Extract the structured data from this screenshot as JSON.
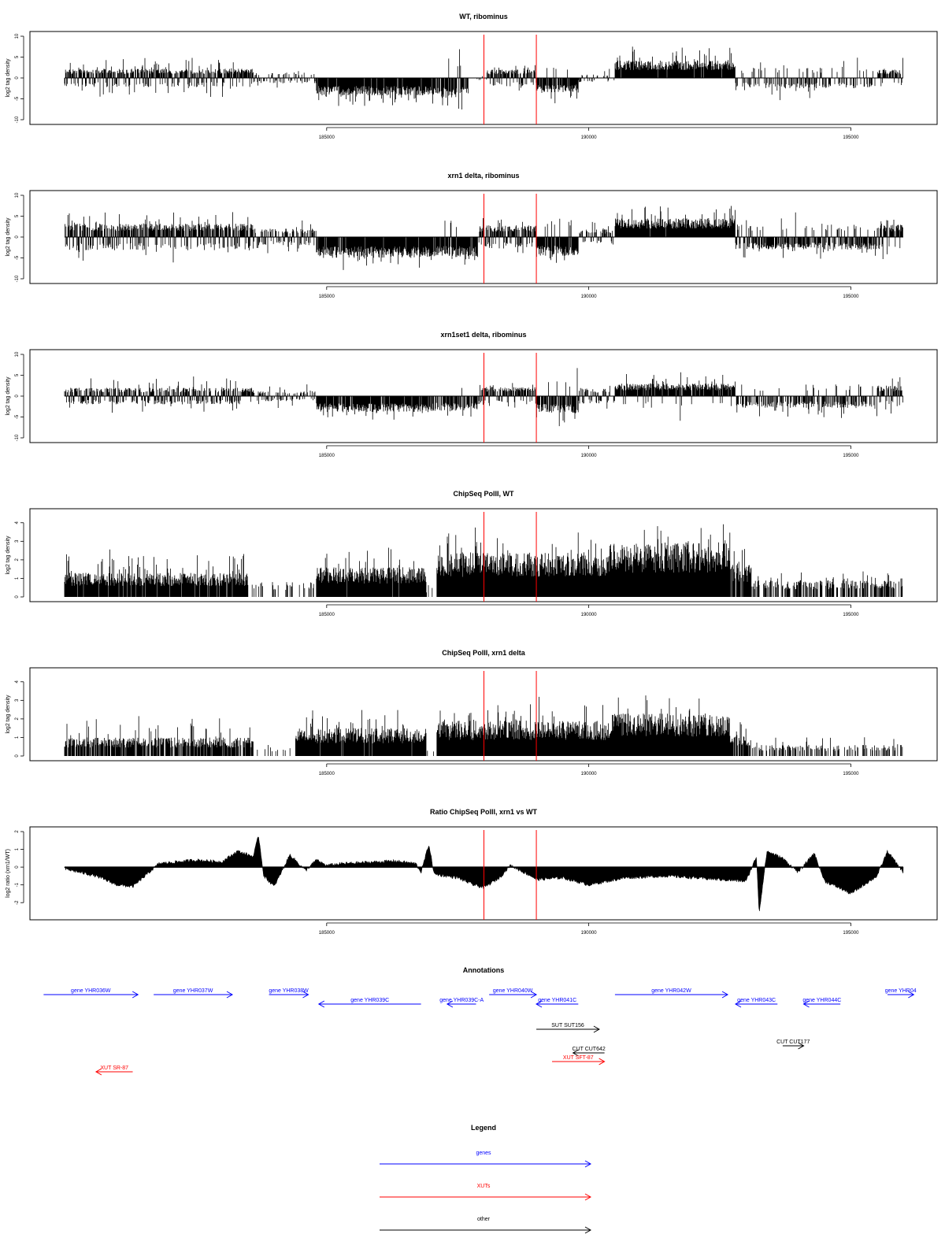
{
  "panels": [
    {
      "title": "WT, ribominus",
      "type": "bar",
      "ylabel": "log2 tag density",
      "ylim": [
        -10,
        10
      ],
      "yticks": [
        "-10",
        "-5",
        "0",
        "5",
        "10"
      ],
      "segments": [
        {
          "from": 180000,
          "to": 183600,
          "sign": 1,
          "mean": 2.2,
          "amp": 3.0,
          "pos_frac": 0.75,
          "density": 0.9
        },
        {
          "from": 183600,
          "to": 184800,
          "sign": 1,
          "mean": 1.3,
          "amp": 1.8,
          "pos_frac": 0.4,
          "density": 0.5
        },
        {
          "from": 184800,
          "to": 187000,
          "sign": -1,
          "mean": 4.2,
          "amp": 3.0,
          "pos_frac": 0.0,
          "density": 0.95
        },
        {
          "from": 187000,
          "to": 187700,
          "sign": -1,
          "mean": 4.8,
          "amp": 3.5,
          "pos_frac": 0.05,
          "density": 0.8
        },
        {
          "from": 187700,
          "to": 188050,
          "sign": 1,
          "mean": 0.5,
          "amp": 1.0,
          "pos_frac": 0.5,
          "density": 0.2
        },
        {
          "from": 188050,
          "to": 189000,
          "sign": 1,
          "mean": 2.0,
          "amp": 2.2,
          "pos_frac": 0.8,
          "density": 0.9
        },
        {
          "from": 189000,
          "to": 189800,
          "sign": -1,
          "mean": 3.5,
          "amp": 3.0,
          "pos_frac": 0.05,
          "density": 0.9
        },
        {
          "from": 189800,
          "to": 190500,
          "sign": 1,
          "mean": 1.0,
          "amp": 1.5,
          "pos_frac": 0.4,
          "density": 0.4
        },
        {
          "from": 190500,
          "to": 192800,
          "sign": 1,
          "mean": 4.2,
          "amp": 4.0,
          "pos_frac": 1.0,
          "density": 0.97
        },
        {
          "from": 192800,
          "to": 195500,
          "sign": -1,
          "mean": 2.5,
          "amp": 3.0,
          "pos_frac": 0.2,
          "density": 0.5
        },
        {
          "from": 195500,
          "to": 196000,
          "sign": 1,
          "mean": 2.0,
          "amp": 3.0,
          "pos_frac": 0.8,
          "density": 0.8
        }
      ]
    },
    {
      "title": "xrn1 delta, ribominus",
      "type": "bar",
      "ylabel": "log2 tag density",
      "ylim": [
        -10,
        10
      ],
      "yticks": [
        "-10",
        "-5",
        "0",
        "5",
        "10"
      ],
      "segments": [
        {
          "from": 180000,
          "to": 183600,
          "sign": 1,
          "mean": 3.2,
          "amp": 3.5,
          "pos_frac": 0.7,
          "density": 0.95
        },
        {
          "from": 183600,
          "to": 184800,
          "sign": 1,
          "mean": 2.0,
          "amp": 2.2,
          "pos_frac": 0.6,
          "density": 0.7
        },
        {
          "from": 184800,
          "to": 187000,
          "sign": -1,
          "mean": 5.0,
          "amp": 3.0,
          "pos_frac": 0.0,
          "density": 0.97
        },
        {
          "from": 187000,
          "to": 187900,
          "sign": -1,
          "mean": 4.8,
          "amp": 3.0,
          "pos_frac": 0.05,
          "density": 0.9
        },
        {
          "from": 187900,
          "to": 189000,
          "sign": 1,
          "mean": 2.8,
          "amp": 2.5,
          "pos_frac": 0.7,
          "density": 0.95
        },
        {
          "from": 189000,
          "to": 189800,
          "sign": -1,
          "mean": 4.5,
          "amp": 3.5,
          "pos_frac": 0.05,
          "density": 0.95
        },
        {
          "from": 189800,
          "to": 190500,
          "sign": 1,
          "mean": 1.8,
          "amp": 2.0,
          "pos_frac": 0.6,
          "density": 0.7
        },
        {
          "from": 190500,
          "to": 192800,
          "sign": 1,
          "mean": 4.5,
          "amp": 4.0,
          "pos_frac": 1.0,
          "density": 0.98
        },
        {
          "from": 192800,
          "to": 195500,
          "sign": -1,
          "mean": 3.0,
          "amp": 3.0,
          "pos_frac": 0.15,
          "density": 0.75
        },
        {
          "from": 195500,
          "to": 196000,
          "sign": 1,
          "mean": 3.0,
          "amp": 3.0,
          "pos_frac": 0.85,
          "density": 0.9
        }
      ]
    },
    {
      "title": "xrn1set1 delta, ribominus",
      "type": "bar",
      "ylabel": "log2 tag density",
      "ylim": [
        -10,
        10
      ],
      "yticks": [
        "-10",
        "-5",
        "0",
        "5",
        "10"
      ],
      "segments": [
        {
          "from": 180000,
          "to": 183600,
          "sign": 1,
          "mean": 2.0,
          "amp": 2.8,
          "pos_frac": 0.6,
          "density": 0.85
        },
        {
          "from": 183600,
          "to": 184800,
          "sign": 1,
          "mean": 1.2,
          "amp": 1.8,
          "pos_frac": 0.5,
          "density": 0.5
        },
        {
          "from": 184800,
          "to": 187000,
          "sign": -1,
          "mean": 3.8,
          "amp": 3.0,
          "pos_frac": 0.0,
          "density": 0.9
        },
        {
          "from": 187000,
          "to": 187900,
          "sign": -1,
          "mean": 3.5,
          "amp": 3.0,
          "pos_frac": 0.05,
          "density": 0.7
        },
        {
          "from": 187900,
          "to": 189000,
          "sign": 1,
          "mean": 2.2,
          "amp": 2.0,
          "pos_frac": 0.75,
          "density": 0.9
        },
        {
          "from": 189000,
          "to": 189800,
          "sign": -1,
          "mean": 4.0,
          "amp": 3.5,
          "pos_frac": 0.05,
          "density": 0.9
        },
        {
          "from": 189800,
          "to": 190500,
          "sign": 1,
          "mean": 1.8,
          "amp": 2.0,
          "pos_frac": 0.5,
          "density": 0.6
        },
        {
          "from": 190500,
          "to": 192800,
          "sign": 1,
          "mean": 3.0,
          "amp": 3.5,
          "pos_frac": 0.9,
          "density": 0.95
        },
        {
          "from": 192800,
          "to": 195500,
          "sign": -1,
          "mean": 2.8,
          "amp": 2.5,
          "pos_frac": 0.15,
          "density": 0.6
        },
        {
          "from": 195500,
          "to": 196000,
          "sign": 1,
          "mean": 2.5,
          "amp": 3.0,
          "pos_frac": 0.8,
          "density": 0.8
        }
      ]
    },
    {
      "title": "ChipSeq PolII, WT",
      "type": "bar",
      "ylabel": "log2 tag density",
      "ylim": [
        0,
        4.5
      ],
      "yticks": [
        "0",
        "1",
        "2",
        "3",
        "4"
      ],
      "segments": [
        {
          "from": 180000,
          "to": 183500,
          "sign": 1,
          "mean": 1.3,
          "amp": 1.4,
          "pos_frac": 1,
          "density": 0.95
        },
        {
          "from": 183500,
          "to": 184800,
          "sign": 1,
          "mean": 0.8,
          "amp": 0.4,
          "pos_frac": 1,
          "density": 0.25
        },
        {
          "from": 184800,
          "to": 186900,
          "sign": 1,
          "mean": 1.6,
          "amp": 1.2,
          "pos_frac": 1,
          "density": 0.98
        },
        {
          "from": 186900,
          "to": 187100,
          "sign": 1,
          "mean": 0.5,
          "amp": 0.3,
          "pos_frac": 1,
          "density": 0.1
        },
        {
          "from": 187100,
          "to": 190400,
          "sign": 1,
          "mean": 2.4,
          "amp": 1.5,
          "pos_frac": 1,
          "density": 1.0
        },
        {
          "from": 190400,
          "to": 192700,
          "sign": 1,
          "mean": 2.9,
          "amp": 1.4,
          "pos_frac": 1,
          "density": 1.0
        },
        {
          "from": 192700,
          "to": 193100,
          "sign": 1,
          "mean": 1.8,
          "amp": 1.0,
          "pos_frac": 1,
          "density": 0.9
        },
        {
          "from": 193100,
          "to": 196000,
          "sign": 1,
          "mean": 0.9,
          "amp": 0.7,
          "pos_frac": 1,
          "density": 0.55
        }
      ]
    },
    {
      "title": "ChipSeq PolII, xrn1 delta",
      "type": "bar",
      "ylabel": "log2 tag density",
      "ylim": [
        0,
        4.5
      ],
      "yticks": [
        "0",
        "1",
        "2",
        "3",
        "4"
      ],
      "segments": [
        {
          "from": 180000,
          "to": 183600,
          "sign": 1,
          "mean": 1.0,
          "amp": 1.2,
          "pos_frac": 1,
          "density": 0.8
        },
        {
          "from": 183600,
          "to": 184400,
          "sign": 1,
          "mean": 0.5,
          "amp": 0.3,
          "pos_frac": 1,
          "density": 0.15
        },
        {
          "from": 184400,
          "to": 186900,
          "sign": 1,
          "mean": 1.5,
          "amp": 1.3,
          "pos_frac": 1,
          "density": 0.98
        },
        {
          "from": 186900,
          "to": 187100,
          "sign": 1,
          "mean": 0.3,
          "amp": 0.3,
          "pos_frac": 1,
          "density": 0.05
        },
        {
          "from": 187100,
          "to": 190400,
          "sign": 1,
          "mean": 1.9,
          "amp": 1.4,
          "pos_frac": 1,
          "density": 1.0
        },
        {
          "from": 190400,
          "to": 192700,
          "sign": 1,
          "mean": 2.3,
          "amp": 1.2,
          "pos_frac": 1,
          "density": 1.0
        },
        {
          "from": 192700,
          "to": 193100,
          "sign": 1,
          "mean": 1.2,
          "amp": 0.8,
          "pos_frac": 1,
          "density": 0.8
        },
        {
          "from": 193100,
          "to": 196000,
          "sign": 1,
          "mean": 0.6,
          "amp": 0.6,
          "pos_frac": 1,
          "density": 0.4
        }
      ]
    },
    {
      "title": "Ratio ChipSeq PolII, xrn1 vs WT",
      "type": "area",
      "ylabel": "log2 ratio (xrn1/WT)",
      "ylim": [
        -2.7,
        2.0
      ],
      "yticks": [
        "-2",
        "-1",
        "0",
        "1",
        "2"
      ],
      "profile": [
        [
          180000,
          -0.1
        ],
        [
          180600,
          -0.5
        ],
        [
          181000,
          -1.0
        ],
        [
          181300,
          -1.1
        ],
        [
          181500,
          -0.6
        ],
        [
          181800,
          0.2
        ],
        [
          182500,
          0.4
        ],
        [
          183000,
          0.3
        ],
        [
          183300,
          0.9
        ],
        [
          183600,
          0.6
        ],
        [
          183700,
          1.8
        ],
        [
          183800,
          -0.5
        ],
        [
          184000,
          -1.1
        ],
        [
          184300,
          0.7
        ],
        [
          184600,
          -0.2
        ],
        [
          184800,
          0.4
        ],
        [
          185000,
          0.1
        ],
        [
          185300,
          0.2
        ],
        [
          186000,
          0.3
        ],
        [
          186300,
          0.35
        ],
        [
          186700,
          0.2
        ],
        [
          186800,
          -0.3
        ],
        [
          186950,
          1.3
        ],
        [
          187050,
          -0.4
        ],
        [
          187500,
          -0.6
        ],
        [
          187800,
          -1.0
        ],
        [
          188000,
          -1.15
        ],
        [
          188300,
          -0.6
        ],
        [
          188500,
          0.1
        ],
        [
          188900,
          -0.5
        ],
        [
          189000,
          -0.7
        ],
        [
          189500,
          -0.6
        ],
        [
          190000,
          -1.0
        ],
        [
          190700,
          -0.6
        ],
        [
          191500,
          -0.5
        ],
        [
          192500,
          -0.7
        ],
        [
          193000,
          -0.8
        ],
        [
          193200,
          0.6
        ],
        [
          193250,
          -2.6
        ],
        [
          193400,
          0.9
        ],
        [
          193700,
          0.5
        ],
        [
          194000,
          -0.3
        ],
        [
          194300,
          0.8
        ],
        [
          194500,
          -0.8
        ],
        [
          194800,
          -1.2
        ],
        [
          195000,
          -1.5
        ],
        [
          195500,
          -0.5
        ],
        [
          195700,
          0.9
        ],
        [
          196000,
          -0.3
        ]
      ]
    }
  ],
  "chart_data": [
    {
      "type": "bar",
      "title": "WT, ribominus",
      "ylabel": "log2 tag density",
      "xlim": [
        180000,
        196000
      ],
      "ylim": [
        -10,
        10
      ],
      "xticks": [
        185000,
        190000,
        195000
      ]
    },
    {
      "type": "bar",
      "title": "xrn1 delta, ribominus",
      "ylabel": "log2 tag density",
      "xlim": [
        180000,
        196000
      ],
      "ylim": [
        -10,
        10
      ],
      "xticks": [
        185000,
        190000,
        195000
      ]
    },
    {
      "type": "bar",
      "title": "xrn1set1 delta, ribominus",
      "ylabel": "log2 tag density",
      "xlim": [
        180000,
        196000
      ],
      "ylim": [
        -10,
        10
      ],
      "xticks": [
        185000,
        190000,
        195000
      ]
    },
    {
      "type": "bar",
      "title": "ChipSeq PolII, WT",
      "ylabel": "log2 tag density",
      "xlim": [
        180000,
        196000
      ],
      "ylim": [
        0,
        4.5
      ],
      "xticks": [
        185000,
        190000,
        195000
      ]
    },
    {
      "type": "bar",
      "title": "ChipSeq PolII, xrn1 delta",
      "ylabel": "log2 tag density",
      "xlim": [
        180000,
        196000
      ],
      "ylim": [
        0,
        4.5
      ],
      "xticks": [
        185000,
        190000,
        195000
      ]
    },
    {
      "type": "area",
      "title": "Ratio ChipSeq PolII, xrn1 vs WT",
      "ylabel": "log2 ratio (xrn1/WT)",
      "xlim": [
        180000,
        196000
      ],
      "ylim": [
        -2.7,
        2.0
      ],
      "xticks": [
        185000,
        190000,
        195000
      ]
    }
  ],
  "x_axis": {
    "min": 180000,
    "max": 196000,
    "ticks": [
      185000,
      190000,
      195000
    ],
    "tick_labels": [
      "185000",
      "190000",
      "195000"
    ]
  },
  "highlight_lines": {
    "positions": [
      188000,
      189000
    ],
    "color": "#ff0000"
  },
  "annotations": {
    "title": "Annotations",
    "items": [
      {
        "label": "gene YHR036W",
        "category": "gene",
        "from": 179600,
        "to": 181400,
        "strand": "+",
        "row": 0
      },
      {
        "label": "gene YHR037W",
        "category": "gene",
        "from": 181700,
        "to": 183200,
        "strand": "+",
        "row": 0
      },
      {
        "label": "gene YHR038W",
        "category": "gene",
        "from": 183900,
        "to": 184650,
        "strand": "+",
        "row": 0
      },
      {
        "label": "gene YHR039C",
        "category": "gene",
        "from": 184850,
        "to": 186800,
        "strand": "-",
        "row": 1
      },
      {
        "label": "gene YHR039C-A",
        "category": "gene",
        "from": 187300,
        "to": 187850,
        "strand": "-",
        "row": 1
      },
      {
        "label": "gene YHR040W",
        "category": "gene",
        "from": 188100,
        "to": 189000,
        "strand": "+",
        "row": 0
      },
      {
        "label": "gene YHR041C",
        "category": "gene",
        "from": 189000,
        "to": 189800,
        "strand": "-",
        "row": 1
      },
      {
        "label": "gene YHR042W",
        "category": "gene",
        "from": 190500,
        "to": 192650,
        "strand": "+",
        "row": 0
      },
      {
        "label": "gene YHR043C",
        "category": "gene",
        "from": 192800,
        "to": 193600,
        "strand": "-",
        "row": 1
      },
      {
        "label": "gene YHR044C",
        "category": "gene",
        "from": 194100,
        "to": 194800,
        "strand": "-",
        "row": 1
      },
      {
        "label": "gene YHR04",
        "category": "gene",
        "from": 195700,
        "to": 196200,
        "strand": "+",
        "row": 0
      },
      {
        "label": "SUT SUT156",
        "category": "other",
        "from": 189000,
        "to": 190200,
        "strand": "+",
        "row": 3
      },
      {
        "label": "CUT CUT177",
        "category": "other",
        "from": 193700,
        "to": 194100,
        "strand": "+",
        "row": 4
      },
      {
        "label": "CUT CUT642",
        "category": "other",
        "from": 189700,
        "to": 190300,
        "strand": "-",
        "row": 5
      },
      {
        "label": "XUT SFT-87",
        "category": "xut",
        "from": 189300,
        "to": 190300,
        "strand": "+",
        "row": 6
      },
      {
        "label": "XUT SR-87",
        "category": "xut",
        "from": 180600,
        "to": 181300,
        "strand": "-",
        "row": 7
      }
    ]
  },
  "legend": {
    "title": "Legend",
    "items": [
      {
        "label": "genes",
        "color": "#0000ff"
      },
      {
        "label": "XUTs",
        "color": "#ff0000"
      },
      {
        "label": "other",
        "color": "#000000"
      }
    ]
  },
  "colors": {
    "gene": "#0000ff",
    "xut": "#ff0000",
    "other": "#000000",
    "bars": "#000000",
    "highlight": "#ff0000"
  }
}
